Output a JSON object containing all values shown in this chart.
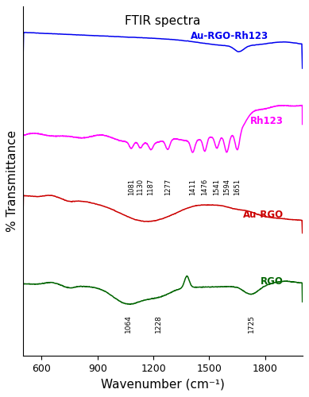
{
  "title": "FTIR spectra",
  "xlabel": "Wavenumber (cm⁻¹)",
  "ylabel": "% Transmittance",
  "xmin": 500,
  "xmax": 2000,
  "background_color": "#ffffff",
  "colors": {
    "Au-RGO-Rh123": "#0000ee",
    "Rh123": "#ff00ff",
    "Au-RGO": "#cc0000",
    "RGO": "#006400"
  },
  "rgo_annotations": [
    {
      "x": 1064,
      "text": "1064"
    },
    {
      "x": 1228,
      "text": "1228"
    },
    {
      "x": 1725,
      "text": "1725"
    }
  ],
  "rh123_annotations": [
    {
      "x": 1081,
      "text": "1081"
    },
    {
      "x": 1130,
      "text": "1130"
    },
    {
      "x": 1187,
      "text": "1187"
    },
    {
      "x": 1277,
      "text": "1277"
    },
    {
      "x": 1411,
      "text": "1411"
    },
    {
      "x": 1476,
      "text": "1476"
    },
    {
      "x": 1541,
      "text": "1541"
    },
    {
      "x": 1594,
      "text": "1594"
    },
    {
      "x": 1651,
      "text": "1651"
    }
  ],
  "xticks": [
    600,
    900,
    1200,
    1500,
    1800
  ]
}
